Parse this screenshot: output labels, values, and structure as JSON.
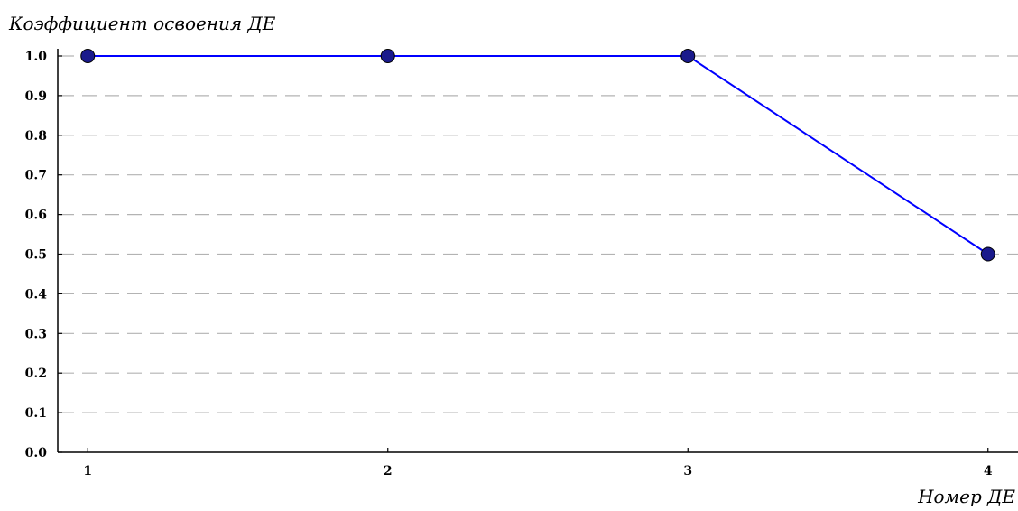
{
  "chart_data": {
    "type": "line",
    "title": "",
    "ylabel": "Коэффициент освоения ДЕ",
    "xlabel": "Номер ДЕ",
    "x": [
      1,
      2,
      3,
      4
    ],
    "xticks": [
      "1",
      "2",
      "3",
      "4"
    ],
    "yticks": [
      "0.0",
      "0.1",
      "0.2",
      "0.3",
      "0.4",
      "0.5",
      "0.6",
      "0.7",
      "0.8",
      "0.9",
      "1.0"
    ],
    "ylim": [
      0,
      1.0
    ],
    "xlim": [
      0.9,
      4.1
    ],
    "series": [
      {
        "values": [
          1.0,
          1.0,
          1.0,
          0.5
        ],
        "color": "#0000ff",
        "marker": "circle",
        "marker_color": "#1a1a8c"
      }
    ],
    "grid": {
      "y": true,
      "style": "dashed",
      "color": "#b3b3b3"
    }
  }
}
